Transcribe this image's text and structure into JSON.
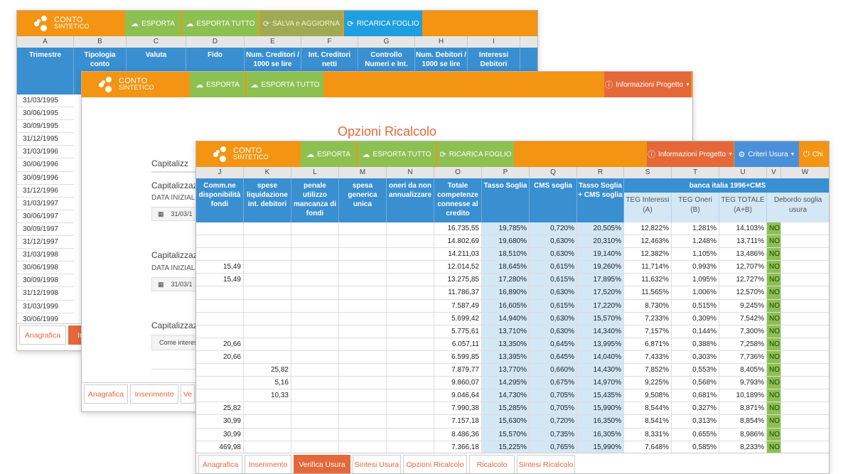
{
  "brand": {
    "line1": "CONTO",
    "line2": "SINTETICO"
  },
  "win1": {
    "buttons": [
      "ESPORTA",
      "ESPORTA TUTTO",
      "SALVA e AGGIORNA",
      "RICARICA FOGLIO"
    ],
    "col_letters": [
      "A",
      "B",
      "C",
      "D",
      "E",
      "F",
      "G",
      "H",
      "I"
    ],
    "headers": [
      [
        "Trimestre"
      ],
      [
        "Tipologia conto"
      ],
      [
        "Valuta"
      ],
      [
        "Fido"
      ],
      [
        "Num. Creditori /",
        "1000 se lire"
      ],
      [
        "Int. Creditori",
        "netti"
      ],
      [
        "Controllo",
        "Numeri e Int."
      ],
      [
        "Num. Debitori /",
        "1000 se lire"
      ],
      [
        "Interessi",
        "Debitori"
      ]
    ],
    "dates": [
      "31/03/1995",
      "30/06/1995",
      "30/09/1995",
      "31/12/1995",
      "31/03/1996",
      "30/06/1996",
      "30/09/1996",
      "31/12/1996",
      "31/03/1997",
      "30/06/1997",
      "30/09/1997",
      "31/12/1997",
      "31/03/1998",
      "30/06/1998",
      "30/09/1998",
      "31/12/1998",
      "31/03/1999",
      "30/06/1999"
    ],
    "tabs": [
      "Anagrafica",
      "Ins"
    ]
  },
  "win2": {
    "buttons": [
      "ESPORTA",
      "ESPORTA TUTTO"
    ],
    "info_button": "Informazioni Progetto",
    "title": "Opzioni Ricalcolo",
    "sections": [
      {
        "heading": "Capitalizz",
        "label": "",
        "value": ""
      },
      {
        "heading": "Capitalizzazi",
        "label": "DATA INIZIALE",
        "value": "31/03/1"
      },
      {
        "heading": "Capitalizzazi",
        "label": "DATA INIZIALE",
        "value": "31/03/1"
      },
      {
        "heading": "Capitalizzazi",
        "label": "",
        "value": "Come interes"
      }
    ],
    "tabs": [
      "Anagrafica",
      "Inserimento",
      "Ve"
    ]
  },
  "win3": {
    "buttons": [
      "ESPORTA",
      "ESPORTA TUTTO",
      "RICARICA FOGLIO"
    ],
    "info_button": "Informazioni Progetto",
    "criteri_button": "Criteri Usura",
    "chiudi_button": "Chi",
    "col_letters": [
      "J",
      "K",
      "L",
      "M",
      "N",
      "O",
      "P",
      "Q",
      "R",
      "S",
      "T",
      "U",
      "V",
      "W"
    ],
    "headers": [
      [
        "Comm.ne",
        "disponibilità",
        "fondi"
      ],
      [
        "spese",
        "liquidazione",
        "int. debitori"
      ],
      [
        "penale",
        "utilizzo",
        "mancanza di",
        "fondi"
      ],
      [
        "spesa",
        "generica",
        "unica"
      ],
      [
        "oneri da non",
        "annualizzare"
      ],
      [
        "Totale",
        "competenze",
        "connesse al",
        "credito"
      ],
      [
        "Tasso Soglia"
      ],
      [
        "CMS soglia"
      ],
      [
        "Tasso Soglia",
        "+ CMS soglia"
      ]
    ],
    "group_header": "banca italia 1996+CMS",
    "sub_headers": [
      [
        "TEG Interessi",
        "(A)"
      ],
      [
        "TEG Oneri",
        "(B)"
      ],
      [
        "TEG TOTALE",
        "(A+B)"
      ],
      [
        "Debordo soglia",
        "usura"
      ]
    ],
    "rows": [
      {
        "j": "",
        "k": "",
        "o": "16.735,55",
        "p": "19,785%",
        "q": "0,720%",
        "r": "20,505%",
        "s": "12,822%",
        "t": "1,281%",
        "u": "14,103%",
        "v": "NO"
      },
      {
        "j": "",
        "k": "",
        "o": "14.802,69",
        "p": "19,680%",
        "q": "0,630%",
        "r": "20,310%",
        "s": "12,463%",
        "t": "1,248%",
        "u": "13,711%",
        "v": "NO"
      },
      {
        "j": "",
        "k": "",
        "o": "14.211,03",
        "p": "18,510%",
        "q": "0,630%",
        "r": "19,140%",
        "s": "12,382%",
        "t": "1,105%",
        "u": "13,486%",
        "v": "NO"
      },
      {
        "j": "15,49",
        "k": "",
        "o": "12.014,52",
        "p": "18,645%",
        "q": "0,615%",
        "r": "19,260%",
        "s": "11,714%",
        "t": "0,993%",
        "u": "12,707%",
        "v": "NO"
      },
      {
        "j": "15,49",
        "k": "",
        "o": "13.275,85",
        "p": "17,280%",
        "q": "0,615%",
        "r": "17,895%",
        "s": "11,632%",
        "t": "1,095%",
        "u": "12,727%",
        "v": "NO"
      },
      {
        "j": "",
        "k": "",
        "o": "11.786,37",
        "p": "16,890%",
        "q": "0,630%",
        "r": "17,520%",
        "s": "11,565%",
        "t": "1,006%",
        "u": "12,570%",
        "v": "NO"
      },
      {
        "j": "",
        "k": "",
        "o": "7.587,49",
        "p": "16,605%",
        "q": "0,615%",
        "r": "17,220%",
        "s": "8,730%",
        "t": "0,515%",
        "u": "9,245%",
        "v": "NO"
      },
      {
        "j": "",
        "k": "",
        "o": "5.699,42",
        "p": "14,940%",
        "q": "0,630%",
        "r": "15,570%",
        "s": "7,233%",
        "t": "0,309%",
        "u": "7,542%",
        "v": "NO"
      },
      {
        "j": "",
        "k": "",
        "o": "5.775,61",
        "p": "13,710%",
        "q": "0,630%",
        "r": "14,340%",
        "s": "7,157%",
        "t": "0,144%",
        "u": "7,300%",
        "v": "NO"
      },
      {
        "j": "20,66",
        "k": "",
        "o": "6.057,11",
        "p": "13,350%",
        "q": "0,645%",
        "r": "13,995%",
        "s": "6,871%",
        "t": "0,388%",
        "u": "7,258%",
        "v": "NO"
      },
      {
        "j": "20,66",
        "k": "",
        "o": "6.599,85",
        "p": "13,395%",
        "q": "0,645%",
        "r": "14,040%",
        "s": "7,433%",
        "t": "0,303%",
        "u": "7,736%",
        "v": "NO"
      },
      {
        "j": "",
        "k": "25,82",
        "o": "7.879,77",
        "p": "13,770%",
        "q": "0,660%",
        "r": "14,430%",
        "s": "7,852%",
        "t": "0,553%",
        "u": "8,405%",
        "v": "NO"
      },
      {
        "j": "",
        "k": "5,16",
        "o": "9.860,07",
        "p": "14,295%",
        "q": "0,675%",
        "r": "14,970%",
        "s": "9,225%",
        "t": "0,568%",
        "u": "9,793%",
        "v": "NO"
      },
      {
        "j": "",
        "k": "10,33",
        "o": "9.046,64",
        "p": "14,730%",
        "q": "0,705%",
        "r": "15,435%",
        "s": "9,508%",
        "t": "0,681%",
        "u": "10,189%",
        "v": "NO"
      },
      {
        "j": "25,82",
        "k": "",
        "o": "7.990,38",
        "p": "15,285%",
        "q": "0,705%",
        "r": "15,990%",
        "s": "8,544%",
        "t": "0,327%",
        "u": "8,871%",
        "v": "NO"
      },
      {
        "j": "30,99",
        "k": "",
        "o": "7.157,18",
        "p": "15,630%",
        "q": "0,720%",
        "r": "16,350%",
        "s": "8,541%",
        "t": "0,313%",
        "u": "8,854%",
        "v": "NO"
      },
      {
        "j": "30,99",
        "k": "",
        "o": "8.486,36",
        "p": "15,570%",
        "q": "0,735%",
        "r": "16,305%",
        "s": "8,331%",
        "t": "0,655%",
        "u": "8,986%",
        "v": "NO"
      },
      {
        "j": "469,98",
        "k": "",
        "o": "7.366,18",
        "p": "15,225%",
        "q": "0,765%",
        "r": "15,990%",
        "s": "7,648%",
        "t": "0,585%",
        "u": "8,233%",
        "v": "NO"
      }
    ],
    "tabs": [
      "Anagrafica",
      "Inserimento",
      "Verifica Usura",
      "Sintesi Usura",
      "Opzioni Ricalcolo",
      "Ricalcolo",
      "Sintesi Ricalcolo"
    ],
    "active_tab": "Verifica Usura"
  },
  "icons": {
    "cloud": "cloud-download-icon",
    "refresh": "refresh-icon",
    "info": "info-icon",
    "gear": "gears-icon",
    "power": "power-icon",
    "calendar": "calendar-icon"
  }
}
